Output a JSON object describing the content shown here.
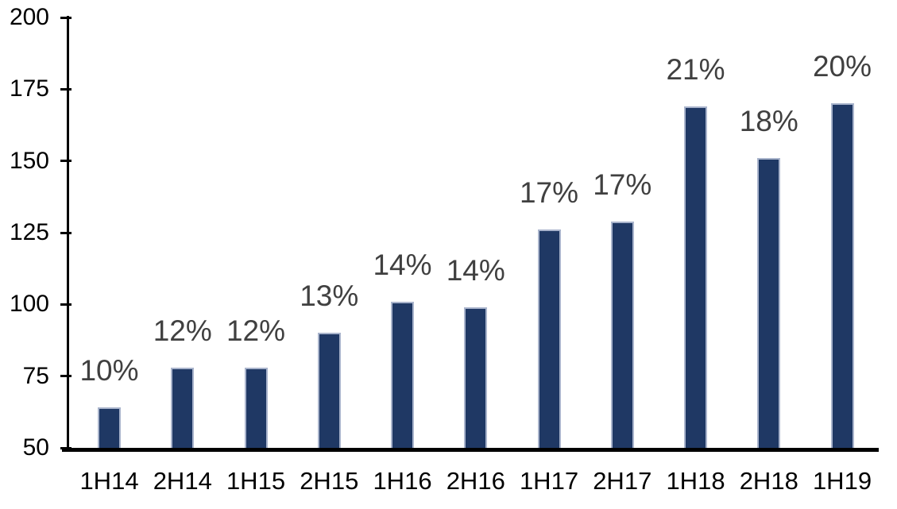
{
  "chart_data": {
    "type": "bar",
    "title": "",
    "xlabel": "",
    "ylabel": "",
    "categories": [
      "1H14",
      "2H14",
      "1H15",
      "2H15",
      "1H16",
      "2H16",
      "1H17",
      "2H17",
      "1H18",
      "2H18",
      "1H19"
    ],
    "values": [
      64,
      78,
      78,
      90,
      101,
      99,
      126,
      129,
      169,
      151,
      170
    ],
    "bar_labels": [
      "10%",
      "12%",
      "12%",
      "13%",
      "14%",
      "14%",
      "17%",
      "17%",
      "21%",
      "18%",
      "20%"
    ],
    "ylim": [
      50,
      200
    ],
    "yticks": [
      50,
      75,
      100,
      125,
      150,
      175,
      200
    ],
    "grid": false,
    "legend": false,
    "colors": {
      "bar_fill": "#1F3864",
      "bar_border": "#A9B4CC",
      "data_label": "#404040",
      "axis_text": "#000000",
      "axis_line": "#000000",
      "background": "#FFFFFF"
    }
  }
}
